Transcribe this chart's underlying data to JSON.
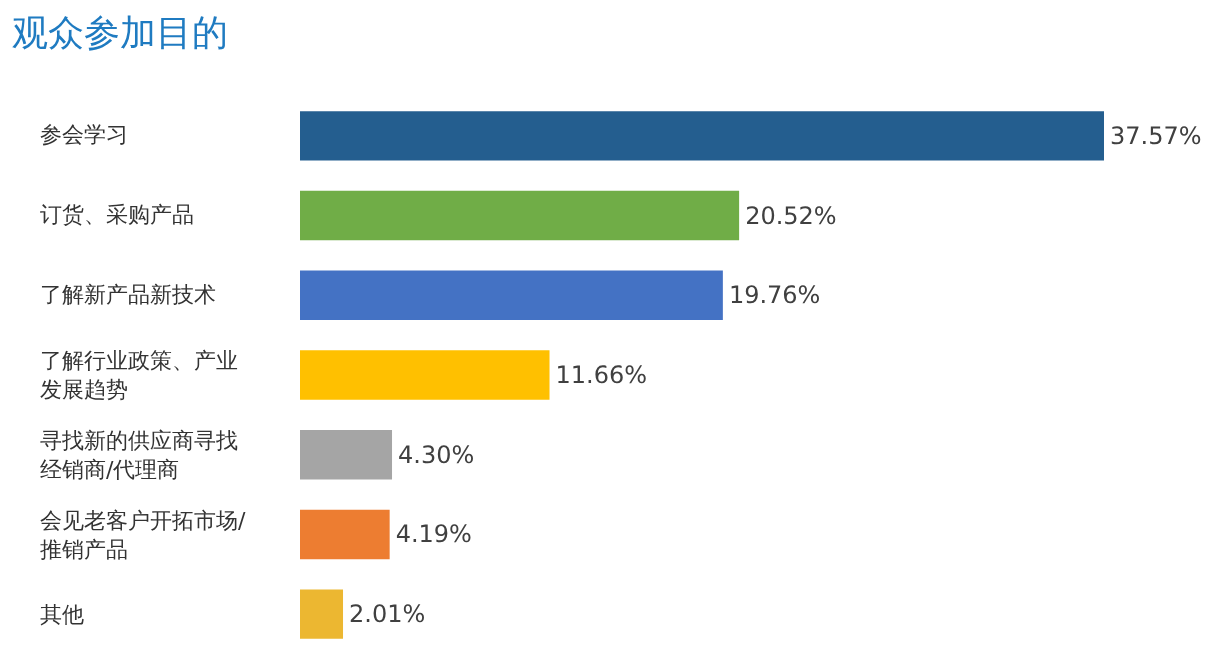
{
  "chart_data": {
    "type": "bar",
    "orientation": "horizontal",
    "title": "观众参加目的",
    "categories": [
      "参会学习",
      "订货、采购产品",
      "了解新产品新技术",
      "了解行业政策、产业发展趋势",
      "寻找新的供应商寻找经销商/代理商",
      "会见老客户开拓市场/推销产品",
      "其他"
    ],
    "values": [
      37.57,
      20.52,
      19.76,
      11.66,
      4.3,
      4.19,
      2.01
    ],
    "value_labels": [
      "37.57%",
      "20.52%",
      "19.76%",
      "11.66%",
      "4.30%",
      "4.19%",
      "2.01%"
    ],
    "colors": [
      "#245e8f",
      "#70ad47",
      "#4472c4",
      "#ffc000",
      "#a5a5a5",
      "#ed7d31",
      "#ecb731"
    ],
    "legend": false
  }
}
